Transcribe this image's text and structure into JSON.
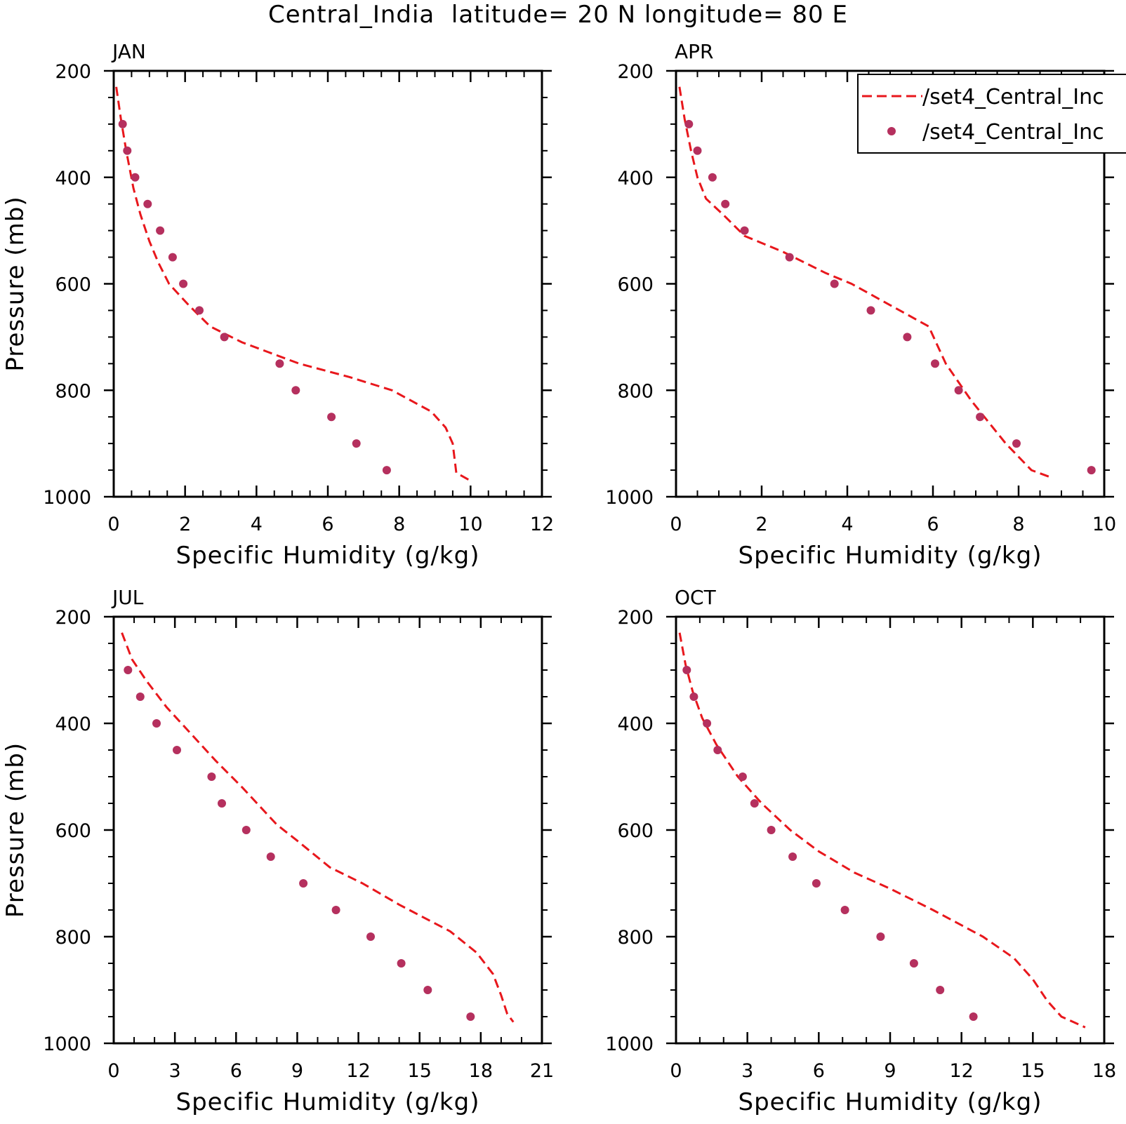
{
  "figure": {
    "title": "Central_India  latitude= 20 N longitude= 80 E"
  },
  "colors": {
    "model_line": "#e8171c",
    "obs_marker": "#b5305e",
    "axis": "#000000",
    "background": "#ffffff"
  },
  "legend": {
    "placement": "top-right of APR panel",
    "entries": [
      {
        "label": "/set4_Central_Inc",
        "style": "dashed-line"
      },
      {
        "label": "/set4_Central_Inc",
        "style": "dot"
      }
    ]
  },
  "chart_data": [
    {
      "type": "line",
      "panel_label": "JAN",
      "xlabel": "Specific Humidity (g/kg)",
      "ylabel": "Pressure (mb)",
      "xlim": [
        0,
        12
      ],
      "ylim": [
        200,
        1000
      ],
      "y_inverted": true,
      "x_ticks": [
        0,
        2,
        4,
        6,
        8,
        10,
        12
      ],
      "y_ticks": [
        200,
        400,
        600,
        800,
        1000
      ],
      "series": [
        {
          "style": "dashed-line",
          "x": [
            0.07,
            0.2,
            0.35,
            0.55,
            0.75,
            1.0,
            1.25,
            1.55,
            2.1,
            2.7,
            3.6,
            5.2,
            6.6,
            7.8,
            8.9,
            9.3,
            9.5,
            9.6,
            10.0
          ],
          "y": [
            230,
            290,
            350,
            420,
            470,
            520,
            560,
            600,
            640,
            680,
            710,
            750,
            775,
            800,
            840,
            870,
            900,
            955,
            970
          ]
        },
        {
          "style": "dots",
          "x": [
            0.25,
            0.38,
            0.6,
            0.95,
            1.3,
            1.65,
            1.95,
            2.4,
            3.1,
            4.65,
            5.1,
            6.1,
            6.8,
            7.65
          ],
          "y": [
            300,
            350,
            400,
            450,
            500,
            550,
            600,
            650,
            700,
            750,
            800,
            850,
            900,
            950
          ]
        }
      ]
    },
    {
      "type": "line",
      "panel_label": "APR",
      "xlabel": "Specific Humidity (g/kg)",
      "ylabel": "",
      "xlim": [
        0,
        10
      ],
      "ylim": [
        200,
        1000
      ],
      "y_inverted": true,
      "x_ticks": [
        0,
        2,
        4,
        6,
        8,
        10
      ],
      "y_ticks": [
        200,
        400,
        600,
        800,
        1000
      ],
      "series": [
        {
          "style": "dashed-line",
          "x": [
            0.08,
            0.2,
            0.35,
            0.5,
            0.7,
            1.1,
            1.6,
            2.5,
            3.5,
            4.1,
            5.0,
            5.9,
            6.3,
            6.9,
            7.7,
            8.3,
            8.8
          ],
          "y": [
            230,
            290,
            350,
            400,
            440,
            470,
            510,
            540,
            580,
            600,
            640,
            680,
            750,
            820,
            900,
            950,
            965
          ]
        },
        {
          "style": "dots",
          "x": [
            0.3,
            0.5,
            0.85,
            1.15,
            1.6,
            2.65,
            3.7,
            4.55,
            5.4,
            6.05,
            6.6,
            7.1,
            7.95,
            9.7
          ],
          "y": [
            300,
            350,
            400,
            450,
            500,
            550,
            600,
            650,
            700,
            750,
            800,
            850,
            900,
            950
          ]
        }
      ]
    },
    {
      "type": "line",
      "panel_label": "JUL",
      "xlabel": "Specific Humidity (g/kg)",
      "ylabel": "Pressure (mb)",
      "xlim": [
        0,
        21
      ],
      "ylim": [
        200,
        1000
      ],
      "y_inverted": true,
      "x_ticks": [
        0,
        3,
        6,
        9,
        12,
        15,
        18,
        21
      ],
      "y_ticks": [
        200,
        400,
        600,
        800,
        1000
      ],
      "series": [
        {
          "style": "dashed-line",
          "x": [
            0.4,
            0.9,
            1.6,
            2.6,
            3.8,
            5.0,
            6.3,
            8.0,
            9.0,
            10.6,
            12.2,
            14.0,
            16.5,
            17.8,
            18.6,
            19.0,
            19.3,
            19.6
          ],
          "y": [
            230,
            280,
            320,
            370,
            420,
            470,
            520,
            590,
            620,
            670,
            700,
            740,
            790,
            830,
            870,
            910,
            945,
            960
          ]
        },
        {
          "style": "dots",
          "x": [
            0.7,
            1.3,
            2.1,
            3.1,
            4.8,
            5.3,
            6.5,
            7.7,
            9.3,
            10.9,
            12.6,
            14.1,
            15.4,
            17.5
          ],
          "y": [
            300,
            350,
            400,
            450,
            500,
            550,
            600,
            650,
            700,
            750,
            800,
            850,
            900,
            950
          ]
        }
      ]
    },
    {
      "type": "line",
      "panel_label": "OCT",
      "xlabel": "Specific Humidity (g/kg)",
      "ylabel": "",
      "xlim": [
        0,
        18
      ],
      "ylim": [
        200,
        1000
      ],
      "y_inverted": true,
      "x_ticks": [
        0,
        3,
        6,
        9,
        12,
        15,
        18
      ],
      "y_ticks": [
        200,
        400,
        600,
        800,
        1000
      ],
      "series": [
        {
          "style": "dashed-line",
          "x": [
            0.15,
            0.4,
            0.7,
            1.1,
            1.7,
            2.6,
            3.6,
            4.8,
            6.0,
            7.5,
            9.0,
            10.8,
            12.9,
            14.2,
            15.0,
            15.6,
            16.2,
            17.2
          ],
          "y": [
            230,
            290,
            340,
            390,
            440,
            500,
            550,
            600,
            640,
            680,
            710,
            750,
            800,
            840,
            880,
            920,
            950,
            970
          ]
        },
        {
          "style": "dots",
          "x": [
            0.45,
            0.75,
            1.3,
            1.75,
            2.8,
            3.3,
            4.0,
            4.9,
            5.9,
            7.1,
            8.6,
            10.0,
            11.1,
            12.5
          ],
          "y": [
            300,
            350,
            400,
            450,
            500,
            550,
            600,
            650,
            700,
            750,
            800,
            850,
            900,
            950
          ]
        }
      ]
    }
  ]
}
